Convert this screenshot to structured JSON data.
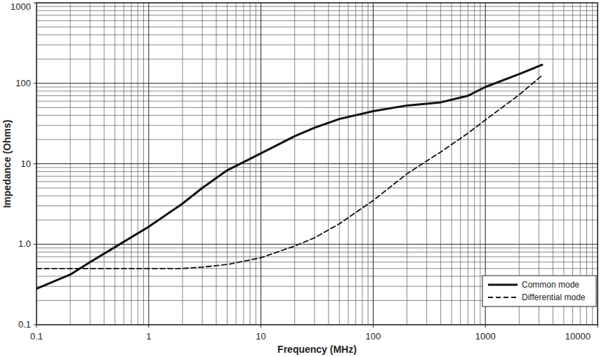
{
  "chart_data": {
    "type": "line",
    "x_label": "Frequency (MHz)",
    "y_label": "Impedance (Ohms)",
    "log": true,
    "grid": true,
    "legend": "lower right",
    "xlim": [
      0.1,
      10000
    ],
    "ylim": [
      0.1,
      1000
    ],
    "xticks": [
      0.1,
      1,
      10,
      100,
      1000,
      10000
    ],
    "yticks": [
      0.1,
      {
        "value": 1,
        "label": "1.0"
      },
      10,
      100,
      1000
    ],
    "x": [
      0.1,
      0.2,
      0.3,
      0.5,
      1,
      2,
      3,
      5,
      10,
      20,
      30,
      50,
      100,
      200,
      400,
      700,
      1000,
      2000,
      3200
    ],
    "series": [
      {
        "name": "Common mode",
        "color": "#111111",
        "line_style": "solid",
        "values": [
          0.28,
          0.42,
          0.6,
          0.92,
          1.65,
          3.2,
          5,
          8.3,
          13.5,
          22,
          28,
          36,
          45,
          53,
          58,
          70,
          90,
          130,
          170
        ]
      },
      {
        "name": "Differential mode",
        "color": "#111111",
        "line_style": "dashed",
        "values": [
          0.5,
          0.5,
          0.5,
          0.5,
          0.5,
          0.5,
          0.52,
          0.56,
          0.68,
          0.95,
          1.2,
          1.8,
          3.5,
          7.5,
          14,
          24,
          35,
          72,
          125
        ]
      }
    ]
  }
}
